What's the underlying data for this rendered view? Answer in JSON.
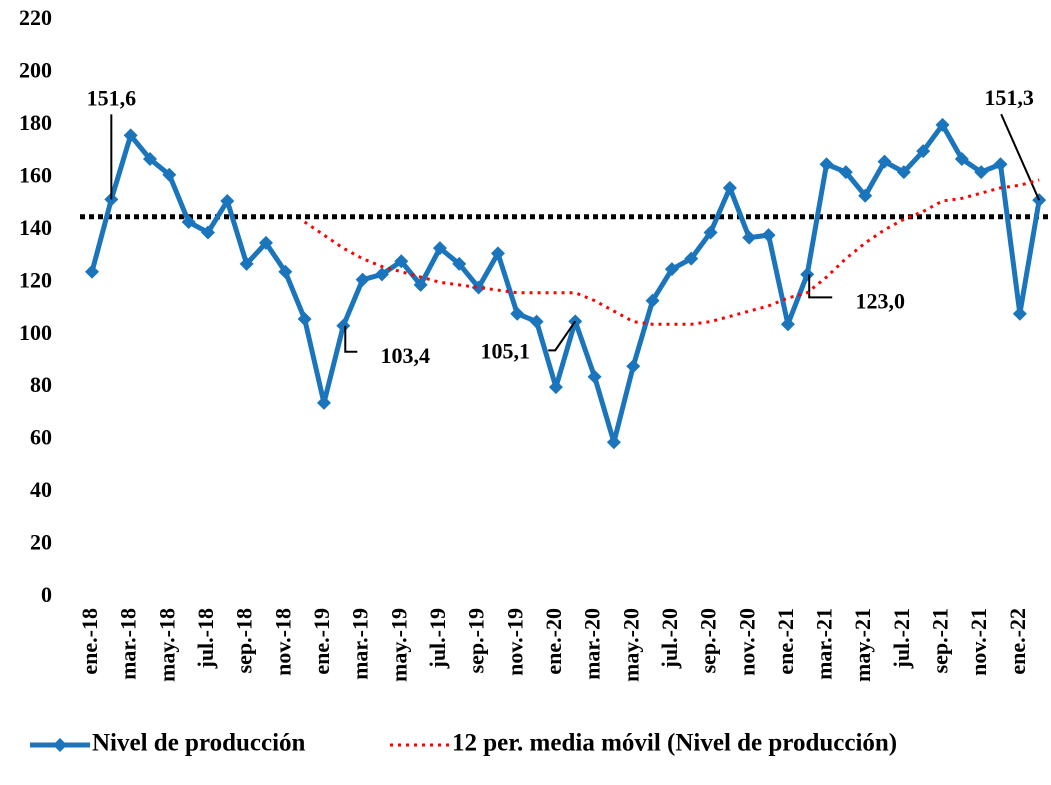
{
  "chart_data": {
    "type": "line",
    "categories": [
      "ene.-18",
      null,
      "mar.-18",
      null,
      "may.-18",
      null,
      "jul.-18",
      null,
      "sep.-18",
      null,
      "nov.-18",
      null,
      "ene.-19",
      null,
      "mar.-19",
      null,
      "may.-19",
      null,
      "jul.-19",
      null,
      "sep.-19",
      null,
      "nov.-19",
      null,
      "ene.-20",
      null,
      "mar.-20",
      null,
      "may.-20",
      null,
      "jul.-20",
      null,
      "sep.-20",
      null,
      "nov.-20",
      null,
      "ene.-21",
      null,
      "mar.-21",
      null,
      "may.-21",
      null,
      "jul.-21",
      null,
      "sep.-21",
      null,
      "nov.-21",
      null,
      "ene.-22",
      null
    ],
    "series": [
      {
        "name": "Nivel de producción",
        "color": "#1b75bc",
        "marker": "diamond",
        "values": [
          124,
          151.6,
          176,
          167,
          161,
          143,
          139,
          151,
          127,
          135,
          124,
          106,
          74,
          103.4,
          121,
          123,
          128,
          119,
          133,
          127,
          118,
          131,
          108,
          105,
          80,
          105.1,
          84,
          59,
          88,
          113,
          125,
          129,
          139,
          156,
          137,
          138,
          104,
          123.0,
          165,
          162,
          153,
          166,
          162,
          170,
          180,
          167,
          162,
          165,
          108,
          151.3
        ],
        "value_labels": [
          null,
          "151,6",
          null,
          null,
          null,
          null,
          null,
          null,
          null,
          null,
          null,
          null,
          null,
          "103,4",
          null,
          null,
          null,
          null,
          null,
          null,
          null,
          null,
          null,
          null,
          null,
          "105,1",
          null,
          null,
          null,
          null,
          null,
          null,
          null,
          null,
          null,
          null,
          null,
          "123,0",
          null,
          null,
          null,
          null,
          null,
          null,
          null,
          null,
          null,
          null,
          null,
          "151,3"
        ]
      },
      {
        "name": "12 per. media móvil (Nivel de producción)",
        "color": "#ff0000",
        "dash": "dotted",
        "values": [
          null,
          null,
          null,
          null,
          null,
          null,
          null,
          null,
          null,
          null,
          null,
          143,
          138,
          133,
          129,
          126,
          124,
          122,
          120,
          119,
          118,
          117,
          116,
          116,
          116,
          116,
          113,
          109,
          105,
          104,
          104,
          104,
          105,
          107,
          109,
          111,
          114,
          116,
          122,
          129,
          135,
          140,
          144,
          147,
          151,
          152,
          154,
          156,
          157,
          159
        ]
      }
    ],
    "reference_line": {
      "value": 145,
      "color": "#000000"
    },
    "ylim": [
      0,
      220
    ],
    "yticks": [
      0,
      20,
      40,
      60,
      80,
      100,
      120,
      140,
      160,
      180,
      200,
      220
    ],
    "grid": false,
    "legend": "bottom"
  }
}
